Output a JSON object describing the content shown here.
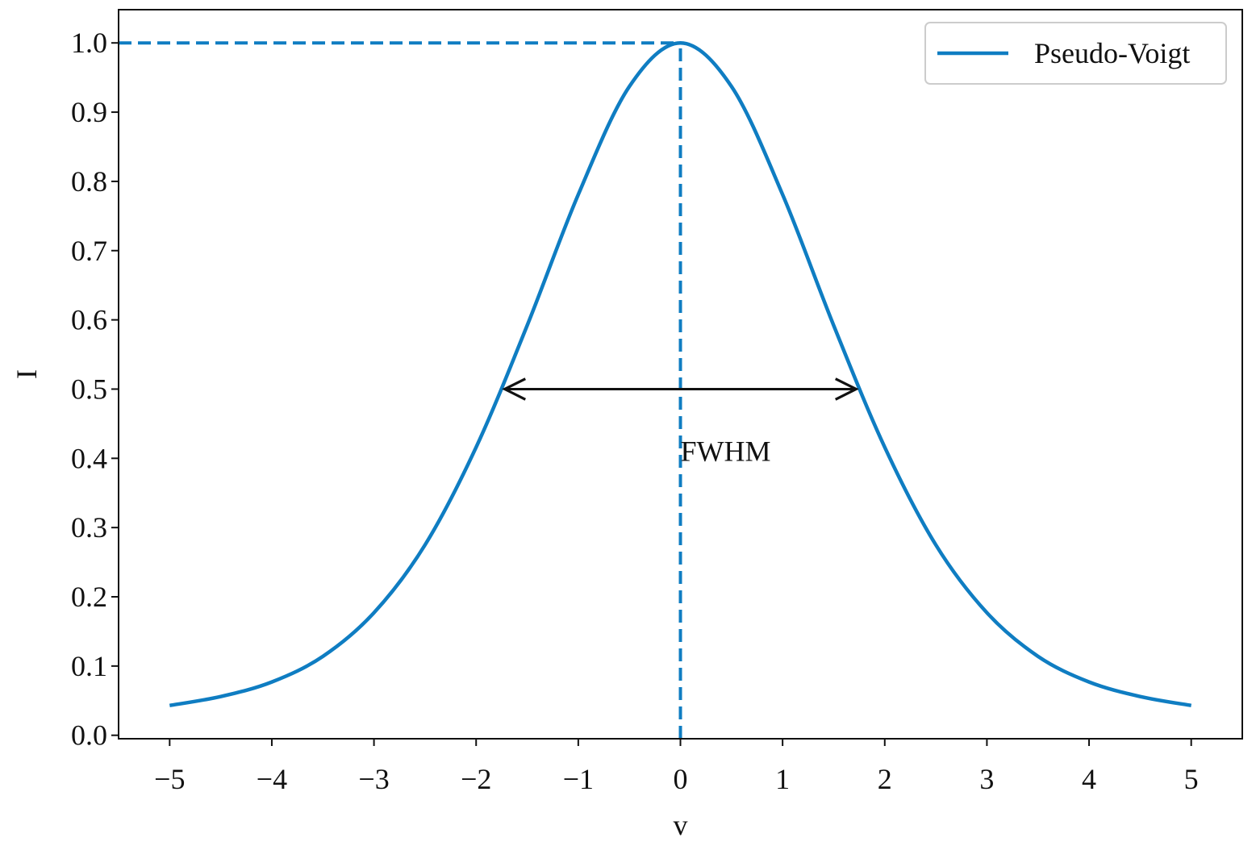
{
  "chart_data": {
    "type": "line",
    "x": [
      -5,
      -4.5,
      -4,
      -3.5,
      -3,
      -2.5,
      -2,
      -1.5,
      -1,
      -0.5,
      0,
      0.5,
      1,
      1.5,
      2,
      2.5,
      3,
      3.5,
      4,
      4.5,
      5
    ],
    "series": [
      {
        "name": "Pseudo-Voigt",
        "color": "#0f7dc2",
        "values": [
          0.043,
          0.056,
          0.077,
          0.114,
          0.177,
          0.275,
          0.416,
          0.592,
          0.781,
          0.937,
          1.0,
          0.937,
          0.781,
          0.592,
          0.416,
          0.275,
          0.177,
          0.114,
          0.077,
          0.056,
          0.043
        ]
      }
    ],
    "xlabel": "v",
    "ylabel": "I",
    "xlim": [
      -5.5,
      5.5
    ],
    "ylim": [
      -0.005,
      1.048
    ],
    "xticks": [
      {
        "value": -5,
        "label": "−5"
      },
      {
        "value": -4,
        "label": "−4"
      },
      {
        "value": -3,
        "label": "−3"
      },
      {
        "value": -2,
        "label": "−2"
      },
      {
        "value": -1,
        "label": "−1"
      },
      0,
      1,
      2,
      3,
      4,
      5
    ],
    "yticks": [
      {
        "value": 0,
        "label": "0.0"
      },
      0.1,
      0.2,
      0.3,
      0.4,
      0.5,
      0.6,
      0.7,
      0.8,
      0.9,
      {
        "value": 1,
        "label": "1.0"
      }
    ],
    "peak": {
      "x": 0,
      "y": 1
    },
    "fwhm_arrow": {
      "x": [
        -1.72,
        1.72
      ],
      "y": 0.5
    },
    "annotation": {
      "text": "FWHM",
      "x": 0,
      "y": 0.41
    },
    "legend": "upper right",
    "grid": false
  }
}
